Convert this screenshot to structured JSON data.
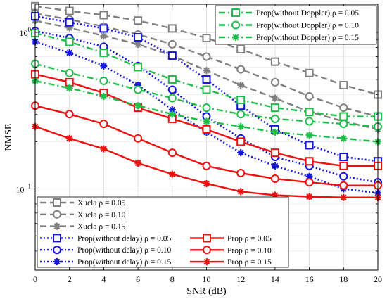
{
  "chart_data": {
    "type": "line",
    "xlabel": "SNR (dB)",
    "ylabel": "NMSE",
    "xlim": [
      0,
      20
    ],
    "ylim_log10": [
      -1.52,
      0.18
    ],
    "yscale": "log",
    "grid": true,
    "x": [
      0,
      2,
      4,
      6,
      8,
      10,
      12,
      14,
      16,
      18,
      20
    ],
    "x_tick_labels": [
      "0",
      "2",
      "4",
      "6",
      "8",
      "10",
      "12",
      "14",
      "16",
      "18",
      "20"
    ],
    "y_tick_labels": [
      {
        "base": "10",
        "exp": "0",
        "value": 1
      },
      {
        "base": "10",
        "exp": "−1",
        "value": 0.1
      }
    ],
    "legend_top_right": [
      {
        "label": "Prop(without Doppler) ρ = 0.05",
        "series": 9
      },
      {
        "label": "Prop(without Doppler) ρ = 0.10",
        "series": 10
      },
      {
        "label": "Prop(without Doppler) ρ = 0.15",
        "series": 11
      }
    ],
    "legend_bottom_left_col1": [
      {
        "label": "Xucla  ρ = 0.05",
        "series": 0
      },
      {
        "label": "Xucla  ρ = 0.10",
        "series": 1
      },
      {
        "label": "Xucla  ρ = 0.15",
        "series": 2
      },
      {
        "label": "Prop(without delay)  ρ = 0.05",
        "series": 3
      },
      {
        "label": "Prop(without delay)  ρ = 0.10",
        "series": 4
      },
      {
        "label": "Prop(without delay)  ρ = 0.15",
        "series": 5
      }
    ],
    "legend_bottom_left_col2": [
      {
        "label": "Prop  ρ = 0.05",
        "series": 6
      },
      {
        "label": "Prop  ρ = 0.10",
        "series": 7
      },
      {
        "label": "Prop  ρ = 0.15",
        "series": 8
      }
    ],
    "series": [
      {
        "name": "Xucla ρ = 0.05",
        "color": "#808080",
        "dash": "dashed",
        "marker": "square",
        "values": [
          1.47,
          1.37,
          1.29,
          1.19,
          1.06,
          0.92,
          0.78,
          0.65,
          0.55,
          0.46,
          0.4
        ]
      },
      {
        "name": "Xucla ρ = 0.10",
        "color": "#808080",
        "dash": "dashed",
        "marker": "circle",
        "values": [
          1.32,
          1.21,
          1.09,
          0.97,
          0.84,
          0.7,
          0.58,
          0.48,
          0.39,
          0.33,
          0.29
        ]
      },
      {
        "name": "Xucla ρ = 0.15",
        "color": "#808080",
        "dash": "dashed",
        "marker": "asterisk",
        "values": [
          1.19,
          1.07,
          0.95,
          0.84,
          0.71,
          0.57,
          0.46,
          0.38,
          0.31,
          0.27,
          0.24
        ]
      },
      {
        "name": "Prop(without delay) ρ = 0.05",
        "color": "#1515e0",
        "dash": "dotted",
        "marker": "square",
        "values": [
          1.27,
          1.16,
          1.06,
          0.93,
          0.71,
          0.5,
          0.34,
          0.24,
          0.19,
          0.16,
          0.15
        ]
      },
      {
        "name": "Prop(without delay) ρ = 0.10",
        "color": "#1515e0",
        "dash": "dotted",
        "marker": "circle",
        "values": [
          1.02,
          0.92,
          0.81,
          0.61,
          0.43,
          0.29,
          0.21,
          0.16,
          0.14,
          0.12,
          0.11
        ]
      },
      {
        "name": "Prop(without delay) ρ = 0.15",
        "color": "#1515e0",
        "dash": "dotted",
        "marker": "asterisk",
        "values": [
          0.87,
          0.74,
          0.61,
          0.46,
          0.32,
          0.23,
          0.17,
          0.14,
          0.12,
          0.1,
          0.094
        ]
      },
      {
        "name": "Prop ρ = 0.05",
        "color": "#ee1111",
        "dash": "solid",
        "marker": "square",
        "values": [
          0.54,
          0.48,
          0.41,
          0.33,
          0.28,
          0.24,
          0.2,
          0.17,
          0.15,
          0.14,
          0.14
        ]
      },
      {
        "name": "Prop ρ = 0.10",
        "color": "#ee1111",
        "dash": "solid",
        "marker": "circle",
        "values": [
          0.34,
          0.3,
          0.26,
          0.21,
          0.17,
          0.14,
          0.126,
          0.116,
          0.11,
          0.105,
          0.105
        ]
      },
      {
        "name": "Prop ρ = 0.15",
        "color": "#ee1111",
        "dash": "solid",
        "marker": "asterisk",
        "values": [
          0.25,
          0.21,
          0.18,
          0.146,
          0.124,
          0.108,
          0.096,
          0.091,
          0.089,
          0.088,
          0.088
        ]
      },
      {
        "name": "Prop(without Doppler) ρ = 0.05",
        "color": "#1fbe4a",
        "dash": "dashdot",
        "marker": "square",
        "values": [
          0.99,
          0.87,
          0.74,
          0.6,
          0.5,
          0.43,
          0.37,
          0.33,
          0.31,
          0.29,
          0.29
        ]
      },
      {
        "name": "Prop(without Doppler) ρ = 0.10",
        "color": "#1fbe4a",
        "dash": "dashdot",
        "marker": "circle",
        "values": [
          0.63,
          0.55,
          0.49,
          0.43,
          0.38,
          0.33,
          0.3,
          0.28,
          0.27,
          0.26,
          0.25
        ]
      },
      {
        "name": "Prop(without Doppler) ρ = 0.15",
        "color": "#1fbe4a",
        "dash": "dashdot",
        "marker": "asterisk",
        "values": [
          0.49,
          0.44,
          0.39,
          0.34,
          0.3,
          0.27,
          0.25,
          0.23,
          0.22,
          0.21,
          0.2
        ]
      }
    ]
  }
}
